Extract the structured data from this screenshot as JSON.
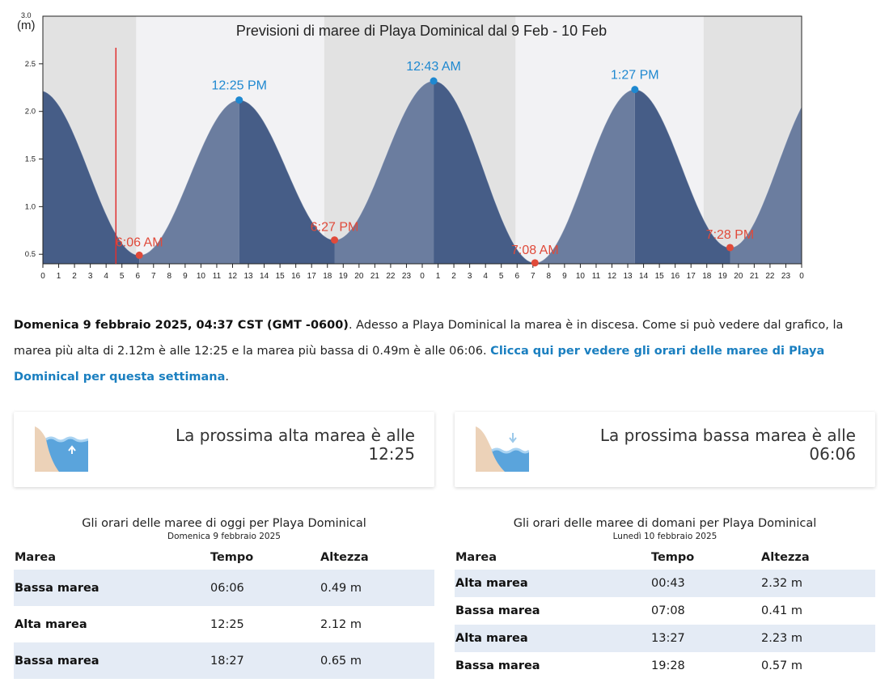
{
  "chart": {
    "title": "Previsioni di maree di Playa Dominical dal 9 Feb - 10 Feb",
    "unit_label": "(m)",
    "y_top_label": "3.0"
  },
  "chart_data": {
    "type": "area",
    "title": "Previsioni di maree di Playa Dominical dal 9 Feb - 10 Feb",
    "ylabel": "(m)",
    "xlabel": "",
    "ylim": [
      0.4,
      3.0
    ],
    "xlim_hours": [
      0,
      48
    ],
    "y_ticks": [
      0.5,
      1.0,
      1.5,
      2.0,
      2.5
    ],
    "x_tick_labels": [
      "0",
      "1",
      "2",
      "3",
      "4",
      "5",
      "6",
      "7",
      "8",
      "9",
      "10",
      "11",
      "12",
      "13",
      "14",
      "15",
      "16",
      "17",
      "18",
      "19",
      "20",
      "21",
      "22",
      "23",
      "0",
      "1",
      "2",
      "3",
      "4",
      "5",
      "6",
      "7",
      "8",
      "9",
      "10",
      "11",
      "12",
      "13",
      "14",
      "15",
      "16",
      "17",
      "18",
      "19",
      "20",
      "21",
      "22",
      "23",
      "0"
    ],
    "extremes": [
      {
        "hour": 6.1,
        "height": 0.49,
        "label": "6:06 AM",
        "kind": "low"
      },
      {
        "hour": 12.42,
        "height": 2.12,
        "label": "12:25 PM",
        "kind": "high"
      },
      {
        "hour": 18.45,
        "height": 0.65,
        "label": "6:27 PM",
        "kind": "low"
      },
      {
        "hour": 24.72,
        "height": 2.32,
        "label": "12:43 AM",
        "kind": "high"
      },
      {
        "hour": 31.13,
        "height": 0.41,
        "label": "7:08 AM",
        "kind": "low"
      },
      {
        "hour": 37.45,
        "height": 2.23,
        "label": "1:27 PM",
        "kind": "high"
      },
      {
        "hour": 43.47,
        "height": 0.57,
        "label": "7:28 PM",
        "kind": "low"
      }
    ],
    "now_hour": 4.62,
    "night_bands_hours": [
      [
        0,
        5.9
      ],
      [
        17.8,
        29.9
      ],
      [
        41.8,
        48
      ]
    ],
    "colors": {
      "fill_dark": "#465d87",
      "fill_light": "#6b7d9f",
      "night_band": "#e2e2e2",
      "day_band": "#f2f2f4",
      "high_marker": "#1e88d0",
      "low_marker": "#e04a3a",
      "now_line": "#e03030"
    }
  },
  "summary": {
    "datetime": "Domenica 9 febbraio 2025, 04:37 CST (GMT -0600)",
    "text": ". Adesso a Playa Dominical la marea è in discesa. Come si può vedere dal grafico, la marea più alta di 2.12m è alle 12:25 e la marea più bassa di 0.49m è alle 06:06. ",
    "link": "Clicca qui per vedere gli orari delle maree di Playa Dominical per questa settimana",
    "end": "."
  },
  "cards": {
    "high": {
      "line1": "La prossima alta marea è alle",
      "time": "12:25",
      "icon": "high-tide-icon"
    },
    "low": {
      "line1": "La prossima bassa marea è alle",
      "time": "06:06",
      "icon": "low-tide-icon"
    }
  },
  "today": {
    "title": "Gli orari delle maree di oggi per Playa Dominical",
    "date": "Domenica 9 febbraio 2025",
    "headers": [
      "Marea",
      "Tempo",
      "Altezza"
    ],
    "rows": [
      {
        "tide": "Bassa marea",
        "time": "06:06",
        "height": "0.49 m"
      },
      {
        "tide": "Alta marea",
        "time": "12:25",
        "height": "2.12 m"
      },
      {
        "tide": "Bassa marea",
        "time": "18:27",
        "height": "0.65 m"
      }
    ]
  },
  "tomorrow": {
    "title": "Gli orari delle maree di domani per Playa Dominical",
    "date": "Lunedì 10 febbraio 2025",
    "headers": [
      "Marea",
      "Tempo",
      "Altezza"
    ],
    "rows": [
      {
        "tide": "Alta marea",
        "time": "00:43",
        "height": "2.32 m"
      },
      {
        "tide": "Bassa marea",
        "time": "07:08",
        "height": "0.41 m"
      },
      {
        "tide": "Alta marea",
        "time": "13:27",
        "height": "2.23 m"
      },
      {
        "tide": "Bassa marea",
        "time": "19:28",
        "height": "0.57 m"
      }
    ]
  }
}
